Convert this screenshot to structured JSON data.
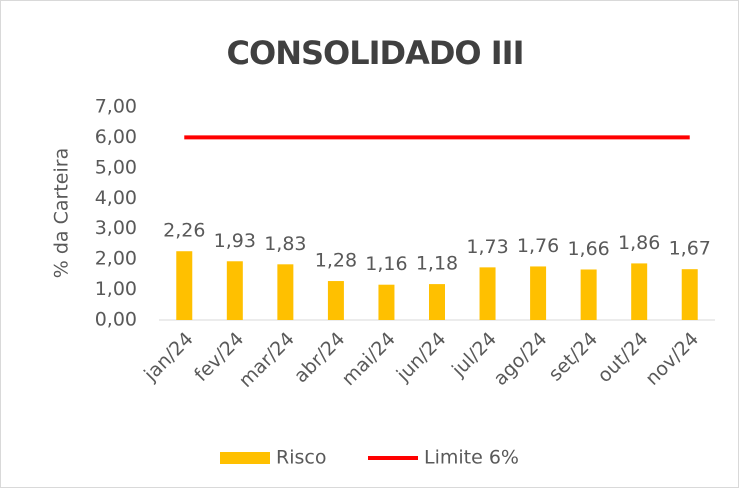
{
  "chart_data": {
    "type": "bar",
    "title": "CONSOLIDADO III",
    "y_label": "% da Carteira",
    "categories": [
      "jan/24",
      "fev/24",
      "mar/24",
      "abr/24",
      "mai/24",
      "jun/24",
      "jul/24",
      "ago/24",
      "set/24",
      "out/24",
      "nov/24"
    ],
    "series": [
      {
        "name": "Risco",
        "type": "bar",
        "color": "#FFC000",
        "values": [
          2.26,
          1.93,
          1.83,
          1.28,
          1.16,
          1.18,
          1.73,
          1.76,
          1.66,
          1.86,
          1.67
        ],
        "value_labels": [
          "2,26",
          "1,93",
          "1,83",
          "1,28",
          "1,16",
          "1,18",
          "1,73",
          "1,76",
          "1,66",
          "1,86",
          "1,67"
        ]
      },
      {
        "name": "Limite 6%",
        "type": "line",
        "color": "#FF0000",
        "values": [
          6,
          6,
          6,
          6,
          6,
          6,
          6,
          6,
          6,
          6,
          6
        ]
      }
    ],
    "ylim": [
      0,
      7
    ],
    "yticks": [
      {
        "value": 0,
        "label": "0,00"
      },
      {
        "value": 1,
        "label": "1,00"
      },
      {
        "value": 2,
        "label": "2,00"
      },
      {
        "value": 3,
        "label": "3,00"
      },
      {
        "value": 4,
        "label": "4,00"
      },
      {
        "value": 5,
        "label": "5,00"
      },
      {
        "value": 6,
        "label": "6,00"
      },
      {
        "value": 7,
        "label": "7,00"
      }
    ],
    "grid": false,
    "legend": "bottom"
  }
}
